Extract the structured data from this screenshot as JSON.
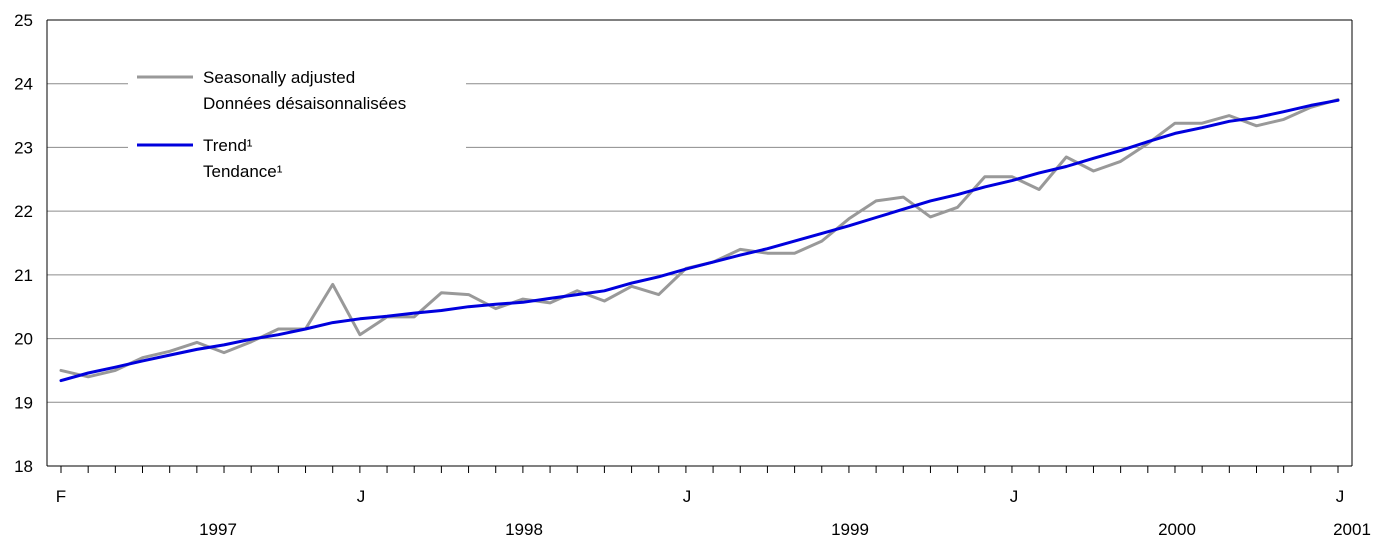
{
  "chart_data": {
    "type": "line",
    "title": "",
    "xlabel": "",
    "ylabel": "",
    "ylim": [
      18,
      25
    ],
    "y_ticks": [
      "18",
      "19",
      "20",
      "21",
      "22",
      "23",
      "24",
      "25"
    ],
    "x_month_markers": [
      "F",
      "J",
      "J",
      "J",
      "J"
    ],
    "x_year_labels": [
      "1997",
      "1998",
      "1999",
      "2000",
      "2001"
    ],
    "x_start": "1997-02",
    "x_end": "2001-01",
    "grid": true,
    "legend_position": "top-left",
    "legend": {
      "series1_line1": "Seasonally adjusted",
      "series1_line2": "Données désaisonnalisées",
      "series2_line1": "Trend¹",
      "series2_line2": "Tendance¹"
    },
    "series": [
      {
        "name": "Seasonally adjusted / Données désaisonnalisées",
        "color": "#999999",
        "values": [
          19.5,
          19.4,
          19.5,
          19.7,
          19.8,
          19.94,
          19.78,
          19.95,
          20.15,
          20.15,
          20.85,
          20.06,
          20.34,
          20.34,
          20.72,
          20.69,
          20.47,
          20.62,
          20.56,
          20.75,
          20.59,
          20.82,
          20.69,
          21.1,
          21.2,
          21.4,
          21.34,
          21.34,
          21.53,
          21.88,
          22.16,
          22.22,
          21.91,
          22.06,
          22.54,
          22.54,
          22.34,
          22.85,
          22.63,
          22.78,
          23.06,
          23.38,
          23.38,
          23.5,
          23.34,
          23.44,
          23.63,
          23.75
        ]
      },
      {
        "name": "Trend¹ / Tendance¹",
        "color": "#0000dd",
        "values": [
          19.34,
          19.46,
          19.55,
          19.65,
          19.74,
          19.83,
          19.9,
          19.99,
          20.06,
          20.15,
          20.25,
          20.31,
          20.35,
          20.4,
          20.44,
          20.5,
          20.54,
          20.57,
          20.63,
          20.69,
          20.75,
          20.87,
          20.97,
          21.09,
          21.2,
          21.31,
          21.41,
          21.53,
          21.65,
          21.77,
          21.9,
          22.03,
          22.16,
          22.26,
          22.38,
          22.48,
          22.6,
          22.7,
          22.83,
          22.95,
          23.09,
          23.22,
          23.31,
          23.41,
          23.47,
          23.56,
          23.66,
          23.74
        ]
      }
    ]
  }
}
